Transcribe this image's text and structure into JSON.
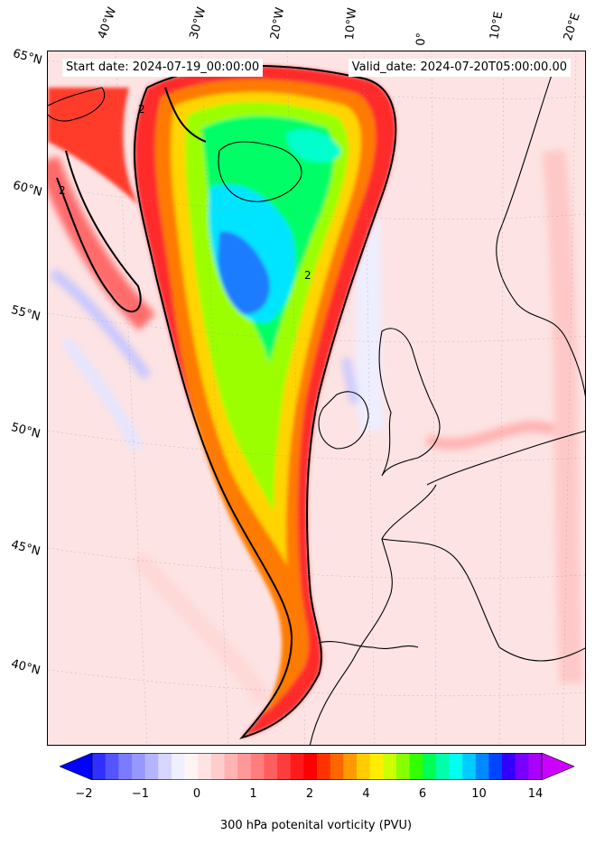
{
  "header": {
    "start_date": "Start date: 2024-07-19_00:00:00",
    "valid_date": "Valid_date: 2024-07-20T05:00:00.00"
  },
  "axes": {
    "longitude_labels": [
      "40°W",
      "30°W",
      "20°W",
      "10°W",
      "0°",
      "10°E",
      "20°E"
    ],
    "latitude_labels": [
      "65°N",
      "60°N",
      "55°N",
      "50°N",
      "45°N",
      "40°N"
    ]
  },
  "map": {
    "projection": "conic",
    "variable": "potential vorticity",
    "level": "300 hPa",
    "contour_line_value": "2",
    "features": [
      "coastlines",
      "gridlines"
    ],
    "colors": {
      "background_low": "#fde3e3",
      "contour": "#000000",
      "coast": "#000000"
    }
  },
  "colorbar": {
    "ticks": [
      "−2",
      "−1",
      "0",
      "1",
      "2",
      "4",
      "6",
      "10",
      "14"
    ],
    "label": "300 hPa potenital vorticity (PVU)",
    "colors": [
      "#0000ff",
      "#2f2fff",
      "#5555ff",
      "#7b7bff",
      "#9797ff",
      "#b5b5ff",
      "#d6d6ff",
      "#efefff",
      "#fff4f4",
      "#ffe2e2",
      "#ffcccc",
      "#ffb3b3",
      "#ff9898",
      "#ff7d7d",
      "#ff5e5e",
      "#ff3c3c",
      "#ff1a1a",
      "#ff0000",
      "#ff3300",
      "#ff6600",
      "#ff9900",
      "#ffcc00",
      "#ffee00",
      "#ccff00",
      "#88ff00",
      "#33ff00",
      "#00ff55",
      "#00ffaa",
      "#00ffee",
      "#00ccff",
      "#0088ff",
      "#0044ff",
      "#3300ff",
      "#7700ff",
      "#aa00ff",
      "#cc00ff"
    ]
  }
}
